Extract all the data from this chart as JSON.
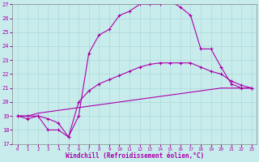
{
  "xlabel": "Windchill (Refroidissement éolien,°C)",
  "xlim": [
    -0.5,
    23.5
  ],
  "ylim": [
    17,
    27
  ],
  "xticks": [
    0,
    1,
    2,
    3,
    4,
    5,
    6,
    7,
    8,
    9,
    10,
    11,
    12,
    13,
    14,
    15,
    16,
    17,
    18,
    19,
    20,
    21,
    22,
    23
  ],
  "yticks": [
    17,
    18,
    19,
    20,
    21,
    22,
    23,
    24,
    25,
    26,
    27
  ],
  "background_color": "#c8ecec",
  "grid_color": "#aad8d8",
  "line_color": "#aa00aa",
  "line1_x": [
    0,
    1,
    2,
    3,
    4,
    5,
    6,
    7,
    8,
    9,
    10,
    11,
    12,
    13,
    14,
    15,
    16,
    17,
    18,
    19,
    20,
    21,
    22,
    23
  ],
  "line1_y": [
    19.0,
    19.0,
    19.0,
    18.8,
    18.5,
    17.5,
    20.0,
    20.8,
    21.3,
    21.6,
    21.9,
    22.2,
    22.5,
    22.7,
    22.8,
    22.8,
    22.8,
    22.8,
    22.5,
    22.2,
    22.0,
    21.5,
    21.2,
    21.0
  ],
  "line2_x": [
    0,
    1,
    2,
    3,
    4,
    5,
    6,
    7,
    8,
    9,
    10,
    11,
    12,
    13,
    14,
    15,
    16,
    17,
    18,
    19,
    20,
    21,
    22,
    23
  ],
  "line2_y": [
    19.0,
    19.0,
    19.2,
    19.3,
    19.4,
    19.5,
    19.6,
    19.7,
    19.8,
    19.9,
    20.0,
    20.1,
    20.2,
    20.3,
    20.4,
    20.5,
    20.6,
    20.7,
    20.8,
    20.9,
    21.0,
    21.0,
    21.0,
    21.0
  ],
  "line3_x": [
    0,
    1,
    2,
    3,
    4,
    5,
    6,
    7,
    8,
    9,
    10,
    11,
    12,
    13,
    14,
    15,
    16,
    17,
    18,
    19,
    20,
    21,
    22,
    23
  ],
  "line3_y": [
    19.0,
    18.8,
    19.0,
    18.0,
    18.0,
    17.5,
    19.0,
    23.5,
    24.8,
    25.2,
    26.2,
    26.5,
    27.0,
    27.0,
    27.0,
    27.2,
    26.8,
    26.2,
    23.8,
    23.8,
    22.5,
    21.3,
    21.0,
    21.0
  ]
}
